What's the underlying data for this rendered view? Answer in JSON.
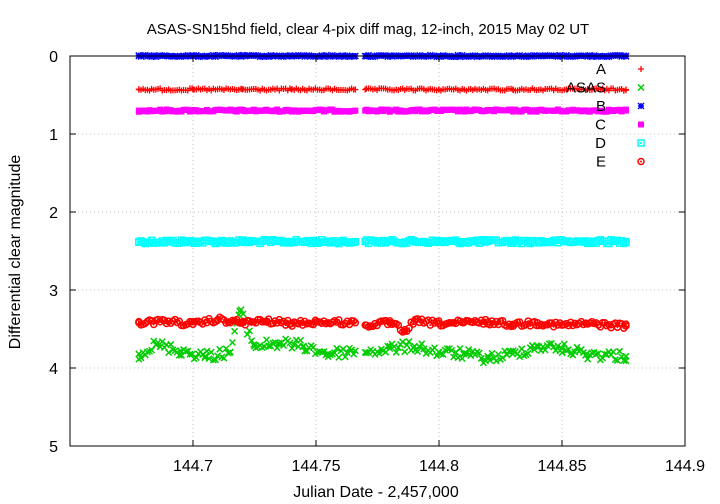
{
  "chart_data": {
    "type": "scatter",
    "title": "ASAS-SN15hd field, clear 4-pix diff mag, 12-inch, 2015 May 02 UT",
    "xlabel": "Julian Date - 2,457,000",
    "ylabel": "Differential clear magnitude",
    "xlim": [
      144.65,
      144.9
    ],
    "ylim": [
      0,
      5
    ],
    "y_inverted": true,
    "grid": true,
    "legend_position": "top-right",
    "x_ticks": [
      "144.7",
      "144.75",
      "144.8",
      "144.85",
      "144.9"
    ],
    "y_ticks": [
      "0",
      "1",
      "2",
      "3",
      "4",
      "5"
    ],
    "x_range_observed": [
      144.678,
      144.876
    ],
    "x_gap": [
      144.766,
      144.77
    ],
    "series": [
      {
        "name": "A",
        "marker": "plus",
        "color": "#ff0000",
        "summary": {
          "mean_mag": 0.43,
          "scatter": 0.015
        },
        "x": [
          144.678,
          144.7,
          144.72,
          144.74,
          144.766,
          144.77,
          144.8,
          144.83,
          144.876
        ],
        "y": [
          0.43,
          0.43,
          0.43,
          0.43,
          0.43,
          0.43,
          0.43,
          0.43,
          0.43
        ]
      },
      {
        "name": "ASAS",
        "marker": "x",
        "color": "#00cc00",
        "summary": {
          "mean_mag": 3.78,
          "scatter": 0.07
        },
        "x": [
          144.678,
          144.685,
          144.695,
          144.705,
          144.715,
          144.719,
          144.725,
          144.735,
          144.745,
          144.755,
          144.766,
          144.77,
          144.78,
          144.79,
          144.8,
          144.81,
          144.82,
          144.83,
          144.84,
          144.85,
          144.86,
          144.876
        ],
        "y": [
          3.82,
          3.7,
          3.78,
          3.85,
          3.8,
          3.27,
          3.72,
          3.68,
          3.72,
          3.82,
          3.78,
          3.8,
          3.75,
          3.72,
          3.8,
          3.82,
          3.88,
          3.82,
          3.72,
          3.75,
          3.82,
          3.85
        ]
      },
      {
        "name": "B",
        "marker": "star",
        "color": "#0000ff",
        "summary": {
          "mean_mag": 0.0,
          "scatter": 0.01
        },
        "x": [
          144.678,
          144.7,
          144.72,
          144.74,
          144.766,
          144.77,
          144.8,
          144.83,
          144.876
        ],
        "y": [
          0.0,
          0.0,
          0.0,
          0.0,
          0.0,
          0.0,
          0.0,
          0.0,
          0.0
        ]
      },
      {
        "name": "C",
        "marker": "filled-square",
        "color": "#ff00ff",
        "summary": {
          "mean_mag": 0.7,
          "scatter": 0.015
        },
        "x": [
          144.678,
          144.7,
          144.72,
          144.74,
          144.766,
          144.77,
          144.8,
          144.83,
          144.876
        ],
        "y": [
          0.7,
          0.7,
          0.7,
          0.7,
          0.7,
          0.7,
          0.7,
          0.7,
          0.7
        ]
      },
      {
        "name": "D",
        "marker": "open-square",
        "color": "#00ffff",
        "summary": {
          "mean_mag": 2.38,
          "scatter": 0.025
        },
        "x": [
          144.678,
          144.7,
          144.72,
          144.74,
          144.766,
          144.77,
          144.8,
          144.83,
          144.876
        ],
        "y": [
          2.38,
          2.38,
          2.38,
          2.38,
          2.38,
          2.38,
          2.38,
          2.38,
          2.38
        ]
      },
      {
        "name": "E",
        "marker": "open-circle",
        "color": "#ff0000",
        "summary": {
          "mean_mag": 3.42,
          "scatter": 0.035
        },
        "x": [
          144.678,
          144.69,
          144.7,
          144.71,
          144.72,
          144.73,
          144.74,
          144.75,
          144.766,
          144.77,
          144.78,
          144.786,
          144.79,
          144.8,
          144.81,
          144.82,
          144.83,
          144.84,
          144.85,
          144.86,
          144.876
        ],
        "y": [
          3.42,
          3.4,
          3.44,
          3.38,
          3.42,
          3.4,
          3.43,
          3.41,
          3.42,
          3.45,
          3.42,
          3.53,
          3.4,
          3.43,
          3.42,
          3.41,
          3.44,
          3.42,
          3.45,
          3.43,
          3.46
        ]
      }
    ]
  }
}
